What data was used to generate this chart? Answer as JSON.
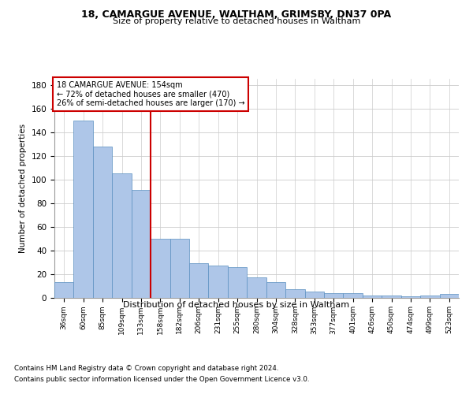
{
  "title1": "18, CAMARGUE AVENUE, WALTHAM, GRIMSBY, DN37 0PA",
  "title2": "Size of property relative to detached houses in Waltham",
  "xlabel": "Distribution of detached houses by size in Waltham",
  "ylabel": "Number of detached properties",
  "footer1": "Contains HM Land Registry data © Crown copyright and database right 2024.",
  "footer2": "Contains public sector information licensed under the Open Government Licence v3.0.",
  "annotation_line1": "18 CAMARGUE AVENUE: 154sqm",
  "annotation_line2": "← 72% of detached houses are smaller (470)",
  "annotation_line3": "26% of semi-detached houses are larger (170) →",
  "bar_color": "#aec6e8",
  "bar_edge_color": "#5a8fc0",
  "vline_color": "#cc0000",
  "grid_color": "#cccccc",
  "categories": [
    "36sqm",
    "60sqm",
    "85sqm",
    "109sqm",
    "133sqm",
    "158sqm",
    "182sqm",
    "206sqm",
    "231sqm",
    "255sqm",
    "280sqm",
    "304sqm",
    "328sqm",
    "353sqm",
    "377sqm",
    "401sqm",
    "426sqm",
    "450sqm",
    "474sqm",
    "499sqm",
    "523sqm"
  ],
  "values": [
    13,
    150,
    128,
    105,
    91,
    50,
    50,
    29,
    27,
    26,
    17,
    13,
    7,
    5,
    4,
    4,
    2,
    2,
    1,
    2,
    3
  ],
  "vline_x": 4.5,
  "ylim": [
    0,
    185
  ],
  "yticks": [
    0,
    20,
    40,
    60,
    80,
    100,
    120,
    140,
    160,
    180
  ]
}
